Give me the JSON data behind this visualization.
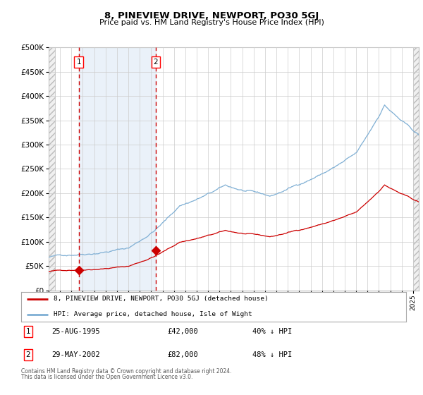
{
  "title": "8, PINEVIEW DRIVE, NEWPORT, PO30 5GJ",
  "subtitle": "Price paid vs. HM Land Registry's House Price Index (HPI)",
  "legend_line1": "8, PINEVIEW DRIVE, NEWPORT, PO30 5GJ (detached house)",
  "legend_line2": "HPI: Average price, detached house, Isle of Wight",
  "annotation1_label": "1",
  "annotation1_date": "25-AUG-1995",
  "annotation1_price": "£42,000",
  "annotation1_hpi": "40% ↓ HPI",
  "annotation2_label": "2",
  "annotation2_date": "29-MAY-2002",
  "annotation2_price": "£82,000",
  "annotation2_hpi": "48% ↓ HPI",
  "footnote_line1": "Contains HM Land Registry data © Crown copyright and database right 2024.",
  "footnote_line2": "This data is licensed under the Open Government Licence v3.0.",
  "sale1_year": 1995.65,
  "sale1_price": 42000,
  "sale2_year": 2002.41,
  "sale2_price": 82000,
  "blue_fill_color": "#dce9f5",
  "red_line_color": "#cc0000",
  "blue_line_color": "#7fafd4",
  "grid_color": "#cccccc",
  "bg_color": "#ffffff",
  "hatch_bg": "#e8e8e8",
  "ymax": 500000,
  "ymin": 0,
  "xmin": 1993.0,
  "xmax": 2025.5
}
